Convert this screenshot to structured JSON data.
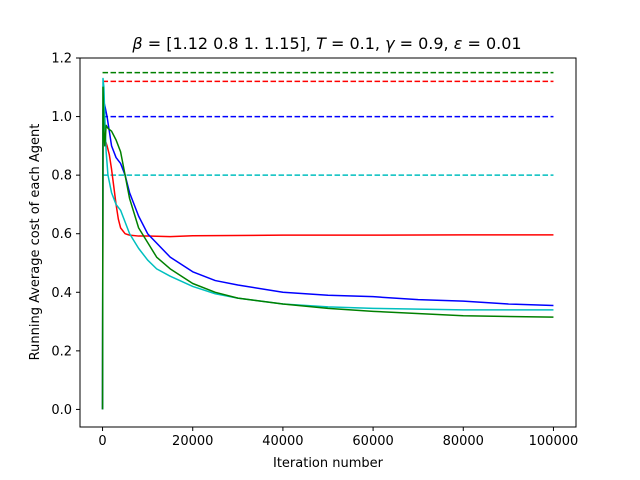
{
  "chart_data": {
    "type": "line",
    "title_parts": {
      "beta_sym": "β",
      "beta_val": " = [1.12 0.8  1.   1.15], ",
      "T_sym": "T",
      "T_val": " = 0.1, ",
      "gamma_sym": "γ",
      "gamma_val": " = 0.9, ",
      "eps_sym": "ε",
      "eps_val": " = 0.01"
    },
    "xlabel": "Iteration number",
    "ylabel": "Running Average cost of each Agent",
    "xlim": [
      -5000,
      105000
    ],
    "ylim": [
      -0.06,
      1.2
    ],
    "x_ticks": [
      0,
      20000,
      40000,
      60000,
      80000,
      100000
    ],
    "x_tick_labels": [
      "0",
      "20000",
      "40000",
      "60000",
      "80000",
      "100000"
    ],
    "y_ticks": [
      0.0,
      0.2,
      0.4,
      0.6,
      0.8,
      1.0,
      1.2
    ],
    "y_tick_labels": [
      "0.0",
      "0.2",
      "0.4",
      "0.6",
      "0.8",
      "1.0",
      "1.2"
    ],
    "grid": false,
    "reference_lines": [
      {
        "color": "#008000",
        "y": 1.15,
        "x_range": [
          0,
          100000
        ],
        "style": "dashed"
      },
      {
        "color": "#ff0000",
        "y": 1.12,
        "x_range": [
          0,
          100000
        ],
        "style": "dashed"
      },
      {
        "color": "#0000ff",
        "y": 1.0,
        "x_range": [
          0,
          100000
        ],
        "style": "dashed"
      },
      {
        "color": "#00bfbf",
        "y": 0.8,
        "x_range": [
          0,
          100000
        ],
        "style": "dashed"
      }
    ],
    "series": [
      {
        "color": "#ff0000",
        "x": [
          0,
          100,
          300,
          600,
          1000,
          1500,
          2000,
          2500,
          3000,
          3500,
          4000,
          5000,
          6000,
          8000,
          10000,
          15000,
          20000,
          40000,
          60000,
          80000,
          100000
        ],
        "y": [
          0.0,
          0.9,
          0.95,
          0.92,
          0.9,
          0.87,
          0.82,
          0.76,
          0.7,
          0.65,
          0.62,
          0.6,
          0.595,
          0.592,
          0.592,
          0.59,
          0.593,
          0.595,
          0.595,
          0.596,
          0.596
        ]
      },
      {
        "color": "#0000ff",
        "x": [
          0,
          100,
          300,
          600,
          1000,
          1500,
          2000,
          3000,
          4000,
          5000,
          6000,
          8000,
          10000,
          15000,
          20000,
          25000,
          30000,
          40000,
          50000,
          60000,
          70000,
          80000,
          90000,
          100000
        ],
        "y": [
          0.0,
          1.02,
          1.05,
          1.03,
          1.0,
          0.95,
          0.9,
          0.86,
          0.84,
          0.8,
          0.74,
          0.66,
          0.6,
          0.52,
          0.47,
          0.44,
          0.425,
          0.4,
          0.39,
          0.385,
          0.375,
          0.37,
          0.36,
          0.355
        ]
      },
      {
        "color": "#00bfbf",
        "x": [
          0,
          100,
          300,
          500,
          800,
          1200,
          2000,
          3000,
          4000,
          5000,
          6000,
          8000,
          10000,
          12000,
          15000,
          20000,
          25000,
          30000,
          40000,
          50000,
          60000,
          80000,
          100000
        ],
        "y": [
          0.0,
          1.13,
          1.1,
          1.0,
          0.88,
          0.8,
          0.74,
          0.7,
          0.68,
          0.64,
          0.6,
          0.55,
          0.51,
          0.48,
          0.455,
          0.42,
          0.395,
          0.38,
          0.36,
          0.35,
          0.345,
          0.34,
          0.34
        ]
      },
      {
        "color": "#008000",
        "x": [
          0,
          100,
          300,
          500,
          800,
          1200,
          2000,
          3000,
          4000,
          5000,
          6000,
          8000,
          10000,
          12000,
          15000,
          20000,
          25000,
          30000,
          40000,
          50000,
          60000,
          80000,
          100000
        ],
        "y": [
          0.0,
          1.1,
          0.95,
          0.9,
          0.97,
          0.96,
          0.95,
          0.92,
          0.88,
          0.8,
          0.72,
          0.62,
          0.57,
          0.52,
          0.48,
          0.43,
          0.4,
          0.38,
          0.36,
          0.345,
          0.335,
          0.32,
          0.315
        ]
      }
    ]
  }
}
